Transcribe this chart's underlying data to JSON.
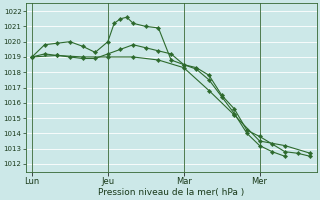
{
  "background_color": "#cce8e8",
  "grid_color": "#b8d8d8",
  "line_color": "#2d6a2d",
  "marker_color": "#2d6a2d",
  "xlabel": "Pression niveau de la mer( hPa )",
  "ylim": [
    1011.5,
    1022.5
  ],
  "yticks": [
    1012,
    1013,
    1014,
    1015,
    1016,
    1017,
    1018,
    1019,
    1020,
    1021,
    1022
  ],
  "xtick_positions": [
    0,
    36,
    72,
    108
  ],
  "xtick_labels": [
    "Lun",
    "Jeu",
    "Mar",
    "Mer"
  ],
  "vlines": [
    0,
    36,
    72,
    108
  ],
  "series1_x": [
    0,
    6,
    12,
    18,
    24,
    30,
    36,
    39,
    42,
    45,
    48,
    54,
    60,
    66,
    72,
    78,
    84,
    90,
    96,
    102,
    108,
    114,
    120,
    126,
    132
  ],
  "series1_y": [
    1019.0,
    1019.8,
    1019.9,
    1020.0,
    1019.7,
    1019.3,
    1020.0,
    1021.2,
    1021.5,
    1021.6,
    1021.2,
    1021.0,
    1020.9,
    1018.8,
    1018.5,
    1018.3,
    1017.8,
    1016.5,
    1015.6,
    1014.2,
    1013.8,
    1013.3,
    1012.8,
    1012.7,
    1012.5
  ],
  "series2_x": [
    0,
    6,
    12,
    18,
    24,
    30,
    36,
    42,
    48,
    54,
    60,
    66,
    72,
    78,
    84,
    90,
    96,
    102,
    108,
    114,
    120
  ],
  "series2_y": [
    1019.0,
    1019.2,
    1019.1,
    1019.0,
    1018.9,
    1018.9,
    1019.2,
    1019.5,
    1019.8,
    1019.6,
    1019.4,
    1019.2,
    1018.5,
    1018.2,
    1017.5,
    1016.4,
    1015.3,
    1014.0,
    1013.2,
    1012.8,
    1012.5
  ],
  "series3_x": [
    0,
    12,
    24,
    36,
    48,
    60,
    72,
    84,
    96,
    108,
    120,
    132
  ],
  "series3_y": [
    1019.0,
    1019.1,
    1019.0,
    1019.0,
    1019.0,
    1018.8,
    1018.3,
    1016.8,
    1015.2,
    1013.5,
    1013.2,
    1012.7
  ],
  "xlim": [
    -3,
    135
  ],
  "total_x": 132,
  "ytick_fontsize": 5.0,
  "xtick_fontsize": 6.0,
  "xlabel_fontsize": 6.5,
  "linewidth": 0.8,
  "markersize": 2.2
}
